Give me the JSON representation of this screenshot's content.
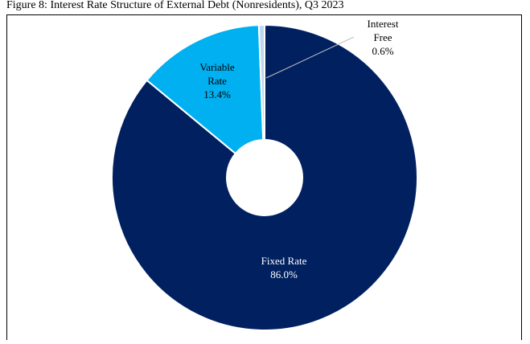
{
  "chart_data": {
    "type": "pie",
    "title": "Figure 8: Interest Rate Structure of External Debt (Nonresidents), Q3 2023",
    "categories": [
      "Fixed Rate",
      "Variable Rate",
      "Interest Free"
    ],
    "values": [
      86.0,
      13.4,
      0.6
    ],
    "value_labels": [
      "86.0%",
      "13.4%",
      "0.6%"
    ],
    "colors": [
      "#002060",
      "#00b0f0",
      "#bdd7ee"
    ]
  }
}
